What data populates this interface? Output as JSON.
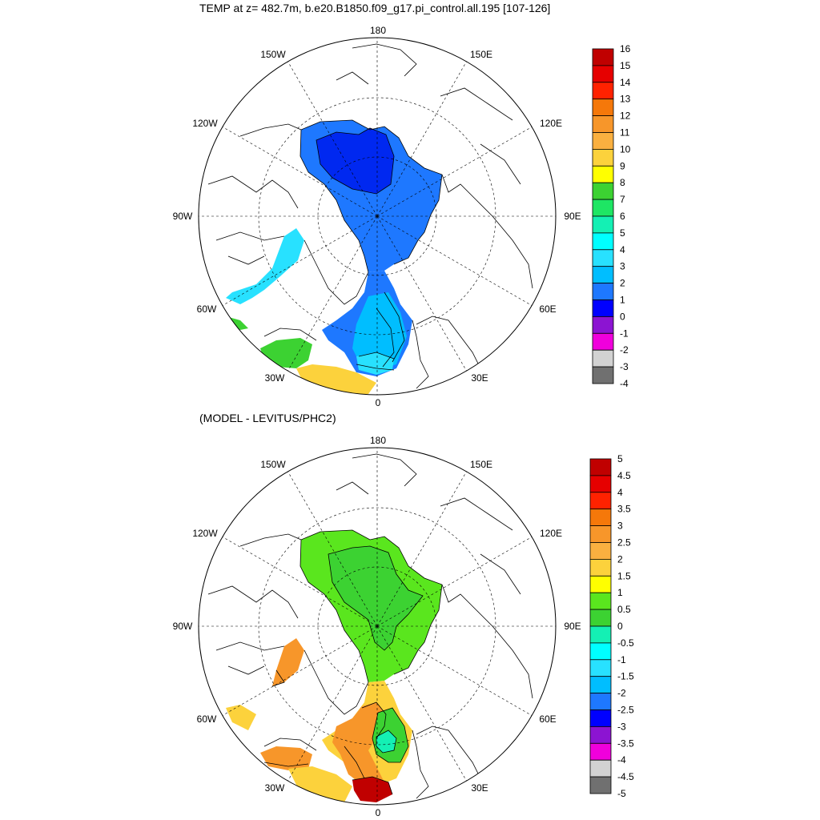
{
  "panels": [
    {
      "id": "top",
      "title": "TEMP at z= 482.7m, b.e20.B1850.f09_g17.pi_control.all.195 [107-126]",
      "colorbar": {
        "labels": [
          "16",
          "15",
          "14",
          "13",
          "12",
          "11",
          "10",
          "9",
          "8",
          "7",
          "6",
          "5",
          "4",
          "3",
          "2",
          "1",
          "0",
          "-1",
          "-2",
          "-3",
          "-4"
        ],
        "colors": [
          "#c00000",
          "#e60000",
          "#ff2200",
          "#f5780a",
          "#f7962a",
          "#fab040",
          "#fcd23c",
          "#ffff00",
          "#3cd232",
          "#1ee664",
          "#14f0b4",
          "#00ffff",
          "#28e1ff",
          "#00beff",
          "#1e78ff",
          "#0000ff",
          "#8c14d2",
          "#f000dc",
          "#d2d2d2",
          "#707070"
        ]
      },
      "lon_labels": [
        "180",
        "150E",
        "120E",
        "90E",
        "60E",
        "30E",
        "0",
        "30W",
        "60W",
        "90W",
        "120W",
        "150W"
      ]
    },
    {
      "id": "bottom",
      "title": "(MODEL - LEVITUS/PHC2)",
      "colorbar": {
        "labels": [
          "5",
          "4.5",
          "4",
          "3.5",
          "3",
          "2.5",
          "2",
          "1.5",
          "1",
          "0.5",
          "0",
          "-0.5",
          "-1",
          "-1.5",
          "-2",
          "-2.5",
          "-3",
          "-3.5",
          "-4",
          "-4.5",
          "-5"
        ],
        "colors": [
          "#c00000",
          "#e60000",
          "#ff2200",
          "#f5780a",
          "#f7962a",
          "#fab040",
          "#fcd23c",
          "#ffff00",
          "#5ae61e",
          "#3cd232",
          "#14f0b4",
          "#00ffff",
          "#28e1ff",
          "#00beff",
          "#1e78ff",
          "#0000ff",
          "#8c14d2",
          "#f000dc",
          "#d2d2d2",
          "#707070"
        ]
      },
      "lon_labels": [
        "180",
        "150E",
        "120E",
        "90E",
        "60E",
        "30E",
        "0",
        "30W",
        "60W",
        "90W",
        "120W",
        "150W"
      ]
    }
  ],
  "colors": {
    "top_fill_deep": "#0028f0",
    "top_fill_main": "#1e78ff",
    "top_fill_light": "#28e1ff",
    "top_fill_cyan": "#14f0d2",
    "top_fill_green": "#3cd232",
    "top_fill_yellow": "#fcd23c",
    "bot_fill_green": "#5ae61e",
    "bot_fill_green2": "#3cd232",
    "bot_fill_orange": "#f7962a",
    "bot_fill_yellow": "#fcd23c",
    "bot_fill_red": "#c00000",
    "bot_fill_cyan": "#14f0b4"
  }
}
